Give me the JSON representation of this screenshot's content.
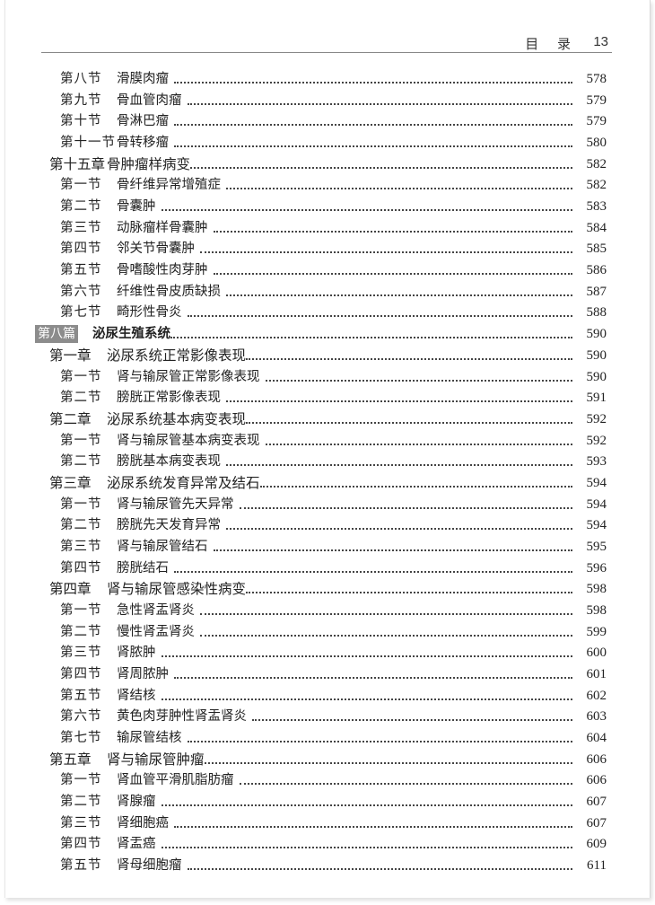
{
  "header": {
    "title": "目 录",
    "page": "13"
  },
  "entries": [
    {
      "level": "section",
      "label": "第八节",
      "title": "滑膜肉瘤",
      "page": "578"
    },
    {
      "level": "section",
      "label": "第九节",
      "title": "骨血管肉瘤",
      "page": "579"
    },
    {
      "level": "section",
      "label": "第十节",
      "title": "骨淋巴瘤",
      "page": "579"
    },
    {
      "level": "section",
      "label": "第十一节",
      "title": "骨转移瘤",
      "page": "580"
    },
    {
      "level": "chapter",
      "label": "第十五章",
      "title": "骨肿瘤样病变",
      "page": "582"
    },
    {
      "level": "section",
      "label": "第一节",
      "title": "骨纤维异常增殖症",
      "page": "582"
    },
    {
      "level": "section",
      "label": "第二节",
      "title": "骨囊肿",
      "page": "583"
    },
    {
      "level": "section",
      "label": "第三节",
      "title": "动脉瘤样骨囊肿",
      "page": "584"
    },
    {
      "level": "section",
      "label": "第四节",
      "title": "邻关节骨囊肿",
      "page": "585"
    },
    {
      "level": "section",
      "label": "第五节",
      "title": "骨嗜酸性肉芽肿",
      "page": "586"
    },
    {
      "level": "section",
      "label": "第六节",
      "title": "纤维性骨皮质缺损",
      "page": "587"
    },
    {
      "level": "section",
      "label": "第七节",
      "title": "畸形性骨炎",
      "page": "588"
    },
    {
      "level": "part",
      "label": "第八篇",
      "title": "泌尿生殖系统",
      "page": "590"
    },
    {
      "level": "chapter",
      "label": "第一章",
      "title": "泌尿系统正常影像表现",
      "page": "590"
    },
    {
      "level": "section",
      "label": "第一节",
      "title": "肾与输尿管正常影像表现",
      "page": "590"
    },
    {
      "level": "section",
      "label": "第二节",
      "title": "膀胱正常影像表现",
      "page": "591"
    },
    {
      "level": "chapter",
      "label": "第二章",
      "title": "泌尿系统基本病变表现",
      "page": "592"
    },
    {
      "level": "section",
      "label": "第一节",
      "title": "肾与输尿管基本病变表现",
      "page": "592"
    },
    {
      "level": "section",
      "label": "第二节",
      "title": "膀胱基本病变表现",
      "page": "593"
    },
    {
      "level": "chapter",
      "label": "第三章",
      "title": "泌尿系统发育异常及结石",
      "page": "594"
    },
    {
      "level": "section",
      "label": "第一节",
      "title": "肾与输尿管先天异常",
      "page": "594"
    },
    {
      "level": "section",
      "label": "第二节",
      "title": "膀胱先天发育异常",
      "page": "594"
    },
    {
      "level": "section",
      "label": "第三节",
      "title": "肾与输尿管结石",
      "page": "595"
    },
    {
      "level": "section",
      "label": "第四节",
      "title": "膀胱结石",
      "page": "596"
    },
    {
      "level": "chapter",
      "label": "第四章",
      "title": "肾与输尿管感染性病变",
      "page": "598"
    },
    {
      "level": "section",
      "label": "第一节",
      "title": "急性肾盂肾炎",
      "page": "598"
    },
    {
      "level": "section",
      "label": "第二节",
      "title": "慢性肾盂肾炎",
      "page": "599"
    },
    {
      "level": "section",
      "label": "第三节",
      "title": "肾脓肿",
      "page": "600"
    },
    {
      "level": "section",
      "label": "第四节",
      "title": "肾周脓肿",
      "page": "601"
    },
    {
      "level": "section",
      "label": "第五节",
      "title": "肾结核",
      "page": "602"
    },
    {
      "level": "section",
      "label": "第六节",
      "title": "黄色肉芽肿性肾盂肾炎",
      "page": "603"
    },
    {
      "level": "section",
      "label": "第七节",
      "title": "输尿管结核",
      "page": "604"
    },
    {
      "level": "chapter",
      "label": "第五章",
      "title": "肾与输尿管肿瘤",
      "page": "606"
    },
    {
      "level": "section",
      "label": "第一节",
      "title": "肾血管平滑肌脂肪瘤",
      "page": "606"
    },
    {
      "level": "section",
      "label": "第二节",
      "title": "肾腺瘤",
      "page": "607"
    },
    {
      "level": "section",
      "label": "第三节",
      "title": "肾细胞癌",
      "page": "607"
    },
    {
      "level": "section",
      "label": "第四节",
      "title": "肾盂癌",
      "page": "609"
    },
    {
      "level": "section",
      "label": "第五节",
      "title": "肾母细胞瘤",
      "page": "611"
    }
  ]
}
